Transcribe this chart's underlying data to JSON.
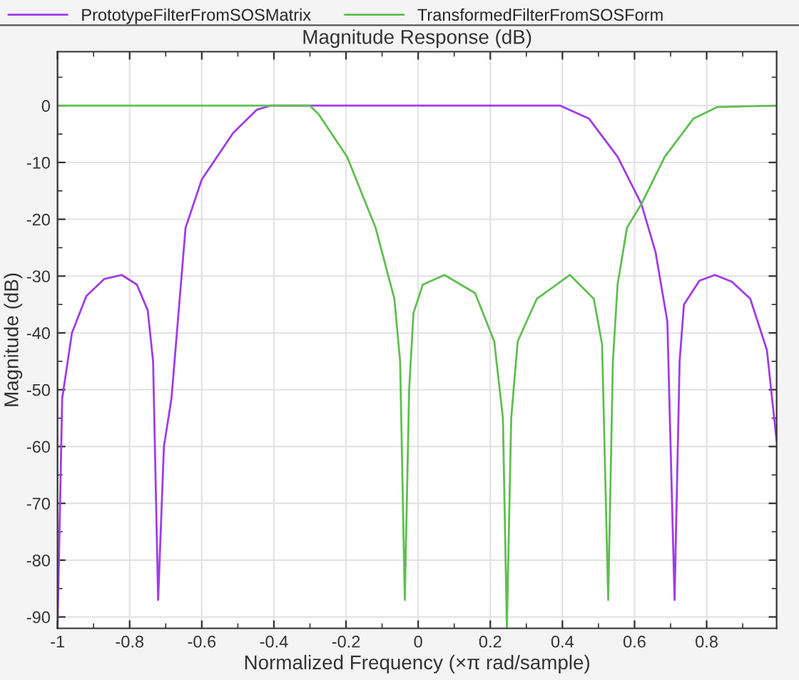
{
  "chart_data": {
    "type": "line",
    "title": "Magnitude Response (dB)",
    "xlabel": "Normalized Frequency (×π rad/sample)",
    "ylabel": "Magnitude (dB)",
    "xlim": [
      -1,
      0.994
    ],
    "ylim": [
      -92,
      9.5
    ],
    "xticks": [
      -1,
      -0.8,
      -0.6,
      -0.4,
      -0.2,
      0,
      0.2,
      0.4,
      0.6,
      0.8
    ],
    "yticks": [
      -90,
      -80,
      -70,
      -60,
      -50,
      -40,
      -30,
      -20,
      -10,
      0
    ],
    "grid": true,
    "legend": "top",
    "line_style": "solid",
    "marker": "none",
    "series": [
      {
        "name": "PrototypeFilterFromSOSMatrix",
        "color": "#a03ce6",
        "x": [
          -1,
          -0.987,
          -0.96,
          -0.92,
          -0.87,
          -0.822,
          -0.78,
          -0.75,
          -0.735,
          -0.721,
          -0.705,
          -0.684,
          -0.645,
          -0.6,
          -0.513,
          -0.447,
          -0.41,
          -0.37,
          0,
          0.394,
          0.474,
          0.553,
          0.619,
          0.658,
          0.691,
          0.711,
          0.725,
          0.737,
          0.78,
          0.823,
          0.87,
          0.921,
          0.967,
          0.994
        ],
        "values": [
          -92,
          -51.5,
          -40,
          -33.5,
          -30.5,
          -29.8,
          -31.5,
          -36,
          -45,
          -87,
          -60,
          -51.5,
          -21.5,
          -13,
          -4.8,
          -0.7,
          0,
          0,
          0,
          0,
          -2.3,
          -9,
          -17.3,
          -25.7,
          -38,
          -87,
          -45,
          -35,
          -30.8,
          -29.8,
          -31,
          -34,
          -43,
          -59
        ]
      },
      {
        "name": "TransformedFilterFromSOSForm",
        "color": "#5fbf50",
        "x": [
          -1,
          -0.3,
          -0.276,
          -0.197,
          -0.118,
          -0.066,
          -0.05,
          -0.037,
          -0.025,
          -0.013,
          0.013,
          0.073,
          0.158,
          0.211,
          0.235,
          0.246,
          0.258,
          0.276,
          0.329,
          0.421,
          0.487,
          0.51,
          0.527,
          0.54,
          0.553,
          0.579,
          0.619,
          0.684,
          0.763,
          0.829,
          0.994
        ],
        "values": [
          0,
          0,
          -1.5,
          -9,
          -21.5,
          -34,
          -45,
          -87,
          -50,
          -36.5,
          -31.5,
          -29.8,
          -33,
          -41.5,
          -55,
          -92,
          -55,
          -41.5,
          -34,
          -29.8,
          -34,
          -42,
          -87,
          -45,
          -31.5,
          -21.5,
          -17.3,
          -9,
          -2.3,
          -0.25,
          0
        ]
      }
    ]
  }
}
